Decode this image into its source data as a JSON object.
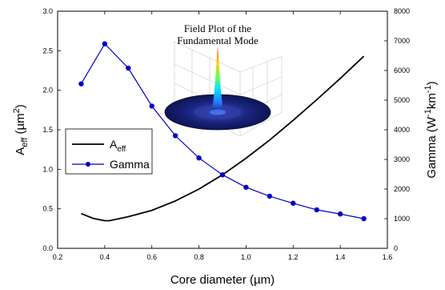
{
  "chart_data": {
    "type": "line",
    "xlabel": "Core diameter (µm)",
    "ylabel": {
      "base": "A",
      "sub": "eff",
      "open": " (µm",
      "sup": "2",
      "close": ")"
    },
    "y2label": {
      "text": "Gamma (W",
      "sup1": "-1",
      "mid": "km",
      "sup2": "-1",
      "close": ")"
    },
    "xlim": [
      0.2,
      1.6
    ],
    "ylim": [
      0.0,
      3.0
    ],
    "y2lim": [
      0,
      8000
    ],
    "x_ticks": [
      0.2,
      0.4,
      0.6,
      0.8,
      1.0,
      1.2,
      1.4,
      1.6
    ],
    "y_ticks": [
      0.0,
      0.5,
      1.0,
      1.5,
      2.0,
      2.5,
      3.0
    ],
    "y2_ticks": [
      0,
      1000,
      2000,
      3000,
      4000,
      5000,
      6000,
      7000,
      8000
    ],
    "x_tick_labels": [
      "0.2",
      "0.4",
      "0.6",
      "0.8",
      "1.0",
      "1.2",
      "1.4",
      "1.6"
    ],
    "y_tick_labels": [
      "0.0",
      "0.5",
      "1.0",
      "1.5",
      "2.0",
      "2.5",
      "3.0"
    ],
    "y2_tick_labels": [
      "0",
      "1000",
      "2000",
      "3000",
      "4000",
      "5000",
      "6000",
      "7000",
      "8000"
    ],
    "series": [
      {
        "name": "Aeff",
        "legend": {
          "base": "A",
          "sub": "eff"
        },
        "axis": "left",
        "color": "#000000",
        "marker": "none",
        "x": [
          0.3,
          0.35,
          0.4,
          0.42,
          0.5,
          0.6,
          0.7,
          0.8,
          0.9,
          1.0,
          1.1,
          1.2,
          1.3,
          1.4,
          1.5
        ],
        "y": [
          0.44,
          0.38,
          0.35,
          0.35,
          0.4,
          0.48,
          0.6,
          0.75,
          0.93,
          1.14,
          1.37,
          1.62,
          1.88,
          2.15,
          2.43
        ]
      },
      {
        "name": "Gamma",
        "legend": {
          "base": "Gamma",
          "sub": ""
        },
        "axis": "right",
        "color": "#0000cc",
        "marker": "circle",
        "x": [
          0.3,
          0.4,
          0.5,
          0.6,
          0.7,
          0.8,
          0.9,
          1.0,
          1.1,
          1.2,
          1.3,
          1.4,
          1.5
        ],
        "y": [
          5550,
          6900,
          6080,
          4800,
          3800,
          3050,
          2480,
          2060,
          1760,
          1520,
          1300,
          1160,
          1000
        ]
      }
    ],
    "inset": {
      "title_line1": "Field Plot of the",
      "title_line2": "Fundamental Mode"
    },
    "legend_position": "middle-left"
  },
  "colors": {
    "gamma": "#0000cc",
    "aeff": "#000000",
    "disk": "#1a237e"
  }
}
